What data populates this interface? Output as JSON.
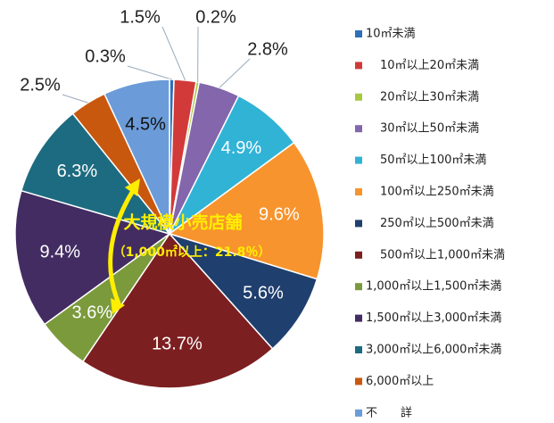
{
  "chart_data": {
    "type": "pie",
    "categories": [
      "10㎡未満",
      "10㎡以上20㎡未満",
      "20㎡以上30㎡未満",
      "30㎡以上50㎡未満",
      "50㎡以上100㎡未満",
      "100㎡以上250㎡未満",
      "250㎡以上500㎡未満",
      "500㎡以上1,000㎡未満",
      "1,000㎡以上1,500㎡未満",
      "1,500㎡以上3,000㎡未満",
      "3,000㎡以上6,000㎡未満",
      "6,000㎡以上",
      "不　　詳"
    ],
    "values": [
      0.3,
      1.5,
      0.2,
      2.8,
      4.9,
      9.6,
      5.6,
      13.7,
      3.6,
      9.4,
      6.3,
      2.5,
      4.5
    ],
    "value_labels": [
      "0.3%",
      "1.5%",
      "0.2%",
      "2.8%",
      "4.9%",
      "9.6%",
      "5.6%",
      "13.7%",
      "3.6%",
      "9.4%",
      "6.3%",
      "2.5%",
      "4.5%"
    ],
    "colors": [
      "#2e6fb8",
      "#d23a3a",
      "#a6c940",
      "#8366ab",
      "#31b3d6",
      "#f7942e",
      "#1f3f6e",
      "#7c1f20",
      "#7b9a3c",
      "#432c62",
      "#1d6b80",
      "#c9580f",
      "#6b9bd8"
    ],
    "annotation": {
      "title": "大規模小売店舗",
      "detail": "（1,000㎡以上：21.8％）"
    }
  }
}
